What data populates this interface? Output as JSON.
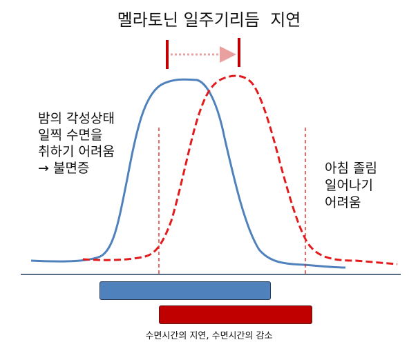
{
  "diagram": {
    "title": "멜라토닌 일주기리듬  지연",
    "left_note": "밤의 각성상태\n일찍 수면을\n취하기 어려움\n→ 불면증",
    "right_note": "아침 졸림\n일어나기\n어려움",
    "caption": "수면시간의 지연, 수면시간의 감소",
    "colors": {
      "normal_curve": "#4f81bd",
      "delayed_curve": "#e31a1c",
      "bar_normal": "#4f81bd",
      "bar_delayed": "#c00000",
      "marker": "#c00000",
      "arrow": "#e8a0a0",
      "baseline": "#1f3b5c"
    },
    "icons": [
      "right-arrow-glyph"
    ]
  }
}
